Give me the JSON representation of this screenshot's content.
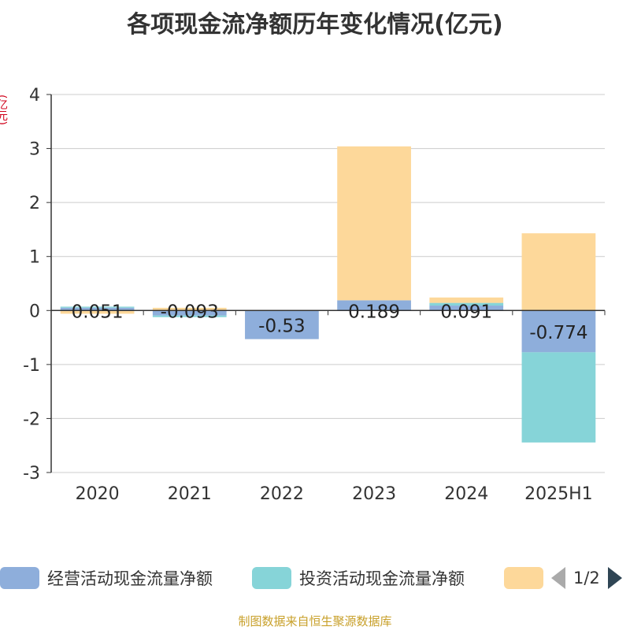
{
  "title": "各项现金流净额历年变化情况(亿元)",
  "unit_label": "(亿元)",
  "source": "制图数据来自恒生聚源数据库",
  "legend": {
    "items": [
      {
        "label": "经营活动现金流量净额",
        "color": "#8eaedb"
      },
      {
        "label": "投资活动现金流量净额",
        "color": "#86d4d8"
      },
      {
        "label": "",
        "color": "#fdd89a"
      }
    ],
    "page_text": "1/2"
  },
  "chart_data": {
    "type": "bar",
    "stacked": true,
    "title": "各项现金流净额历年变化情况(亿元)",
    "ylabel": "(亿元)",
    "ylim": [
      -3,
      4
    ],
    "yticks": [
      -3,
      -2,
      -1,
      0,
      1,
      2,
      3,
      4
    ],
    "grid": true,
    "legend_position": "bottom",
    "categories": [
      "2020",
      "2021",
      "2022",
      "2023",
      "2024",
      "2025H1"
    ],
    "series": [
      {
        "name": "经营活动现金流量净额",
        "color": "#8eaedb",
        "values": [
          0.051,
          -0.093,
          -0.53,
          0.189,
          0.091,
          -0.774
        ],
        "show_labels": true
      },
      {
        "name": "投资活动现金流量净额",
        "color": "#86d4d8",
        "values": [
          0.02,
          -0.03,
          0.0,
          0.0,
          0.05,
          -1.67
        ],
        "show_labels": false
      },
      {
        "name": "",
        "color": "#fdd89a",
        "values": [
          -0.06,
          0.05,
          0.0,
          2.85,
          0.1,
          1.43
        ],
        "show_labels": false
      }
    ],
    "data_labels": [
      "0.051",
      "-0.093",
      "-0.53",
      "0.189",
      "0.091",
      "-0.774"
    ]
  }
}
